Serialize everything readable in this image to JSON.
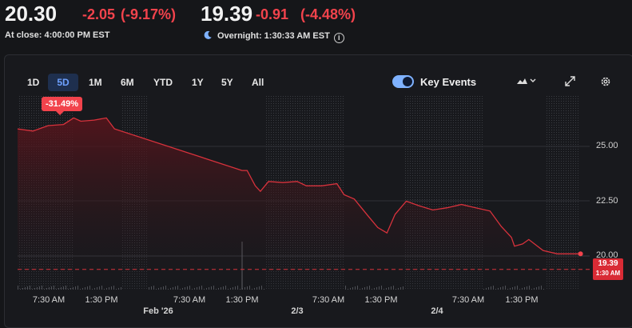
{
  "quote": {
    "close_price": "20.30",
    "close_change": "-2.05",
    "close_change_pct": "(-9.17%)",
    "after_price": "19.39",
    "after_change": "-0.91",
    "after_change_pct": "(-4.48%)",
    "close_label": "At close: 4:00:00 PM EST",
    "overnight_label": "Overnight: 1:30:33 AM EST",
    "info_glyph": "i"
  },
  "toolbar": {
    "ranges": [
      "1D",
      "5D",
      "1M",
      "6M",
      "YTD",
      "1Y",
      "5Y",
      "All"
    ],
    "active_range": "5D",
    "key_events_label": "Key Events",
    "key_events_on": true,
    "chart_type_icon": "mountain-chart-icon",
    "expand_icon": "expand-icon",
    "settings_icon": "gear-icon"
  },
  "chart": {
    "change_badge": "-31.49%",
    "y_ticks": [
      "25.00",
      "22.50",
      "20.00"
    ],
    "price_tag_value": "19.39",
    "price_tag_time": "1:30 AM",
    "x_ticks": [
      "7:30 AM",
      "1:30 PM",
      "7:30 AM",
      "1:30 PM",
      "7:30 AM",
      "1:30 PM",
      "7:30 AM",
      "1:30 PM"
    ],
    "date_labels": [
      "Feb '26",
      "2/3",
      "2/4"
    ],
    "colors": {
      "down": "#f2434c",
      "line": "#d8323c",
      "accent": "#6ea1ff"
    }
  },
  "chart_data": {
    "type": "area",
    "ylim": [
      18.7,
      26.5
    ],
    "y_ticks": [
      25.0,
      22.5,
      20.0
    ],
    "grid": true,
    "points": [
      [
        0,
        25.8
      ],
      [
        1.5,
        25.7
      ],
      [
        3,
        25.95
      ],
      [
        4.5,
        26.0
      ],
      [
        5.5,
        26.3
      ],
      [
        6.2,
        26.15
      ],
      [
        7.5,
        26.2
      ],
      [
        8.7,
        26.3
      ],
      [
        9.5,
        25.8
      ],
      [
        22,
        23.9
      ],
      [
        22.5,
        23.9
      ],
      [
        23.3,
        23.2
      ],
      [
        23.8,
        22.95
      ],
      [
        24.6,
        23.4
      ],
      [
        26,
        23.35
      ],
      [
        27.4,
        23.4
      ],
      [
        28.3,
        23.2
      ],
      [
        29.8,
        23.2
      ],
      [
        31.3,
        23.3
      ],
      [
        32,
        22.8
      ],
      [
        33,
        22.6
      ],
      [
        33.7,
        22.2
      ],
      [
        34.4,
        21.8
      ],
      [
        35.3,
        21.3
      ],
      [
        36.2,
        21.05
      ],
      [
        37,
        21.9
      ],
      [
        38.1,
        22.5
      ],
      [
        39.3,
        22.3
      ],
      [
        40.7,
        22.1
      ],
      [
        42.1,
        22.2
      ],
      [
        43.5,
        22.35
      ],
      [
        44.9,
        22.2
      ],
      [
        46.3,
        22.05
      ],
      [
        47.4,
        21.35
      ],
      [
        48.4,
        20.85
      ],
      [
        48.7,
        20.45
      ],
      [
        49.5,
        20.55
      ],
      [
        50.1,
        20.75
      ],
      [
        51.5,
        20.25
      ],
      [
        52.9,
        20.1
      ],
      [
        54.3,
        20.1
      ],
      [
        55.1,
        20.1
      ]
    ],
    "last_value": 19.39,
    "reference_line": 19.39
  }
}
